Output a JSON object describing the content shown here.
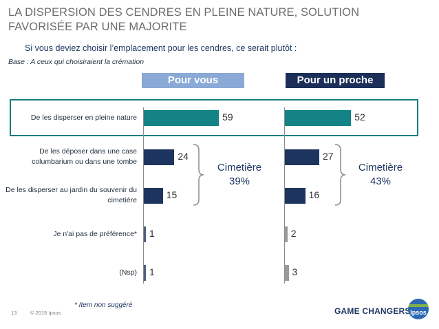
{
  "header": {
    "title": "LA DISPERSION DES CENDRES EN PLEINE NATURE, SOLUTION FAVORISÉE PAR UNE MAJORITE",
    "question": "Si vous deviez choisir l’emplacement pour les cendres, ce serait plutôt :",
    "base": "Base : A ceux qui choisiraient la crémation"
  },
  "chart_data": {
    "type": "bar",
    "orientation": "horizontal",
    "categories": [
      "De les disperser en pleine nature",
      "De les déposer dans une case columbarium ou dans une tombe",
      "De les disperser au jardin du souvenir du cimetière",
      "Je n'ai pas de préférence*",
      "(Nsp)"
    ],
    "series": [
      {
        "name": "Pour vous",
        "values": [
          59,
          24,
          15,
          1,
          1
        ]
      },
      {
        "name": "Pour un proche",
        "values": [
          52,
          27,
          16,
          2,
          3
        ]
      }
    ],
    "groups": [
      {
        "label": "Cimetière",
        "value_text": "39%",
        "series": "Pour vous"
      },
      {
        "label": "Cimetière",
        "value_text": "43%",
        "series": "Pour un proche"
      }
    ],
    "highlighted_category": "De les disperser en pleine nature",
    "colors": {
      "highlight": "#138385",
      "main": "#1d355e",
      "minor_you": "#4f5f7f",
      "minor_other": "#9a9a9a",
      "head_you": "#8aa9d6",
      "head_other": "#1b2f59"
    }
  },
  "footer": {
    "footnote": "* Item non suggéré",
    "page": "13",
    "copyright": "© 2015 Ipsos",
    "tagline": "GAME CHANGERS",
    "logo": "Ipsos"
  }
}
